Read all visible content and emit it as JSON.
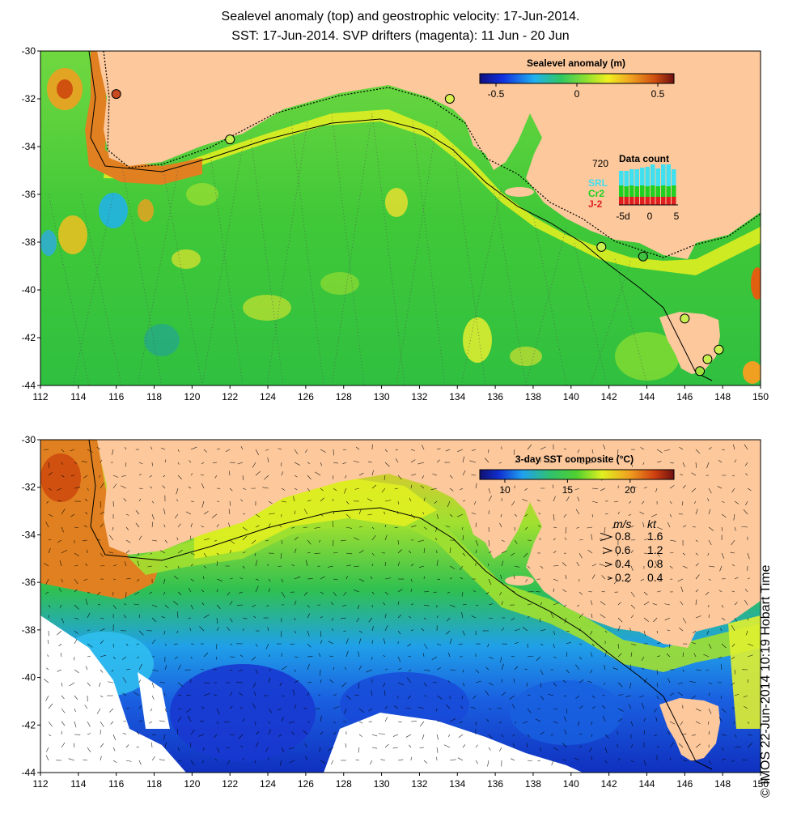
{
  "title": {
    "line1": "Sealevel anomaly (top) and geostrophic velocity: 17-Jun-2014.",
    "line2": "SST: 17-Jun-2014. SVP drifters (magenta): 11 Jun - 20 Jun"
  },
  "axes": {
    "lon_ticks": [
      "112",
      "114",
      "116",
      "118",
      "120",
      "122",
      "124",
      "126",
      "128",
      "130",
      "132",
      "134",
      "136",
      "138",
      "140",
      "142",
      "144",
      "146",
      "148",
      "150"
    ],
    "lat_ticks": [
      "-30",
      "-32",
      "-34",
      "-36",
      "-38",
      "-40",
      "-42",
      "-44"
    ],
    "lon_range": [
      112,
      150
    ],
    "lat_range": [
      -30,
      -44
    ]
  },
  "top_panel": {
    "colorbar_title": "Sealevel anomaly (m)",
    "colorbar_ticks": [
      "-0.5",
      "0",
      "0.5"
    ],
    "colorbar_range": [
      -0.6,
      0.6
    ],
    "data_count": {
      "title": "Data count",
      "max_label": "720",
      "satellites": [
        "SRL",
        "Cr2",
        "J-2"
      ],
      "satellite_colors": [
        "#40e0f0",
        "#20d020",
        "#e02020"
      ],
      "x_ticks": [
        "-5d",
        "0",
        "5"
      ]
    },
    "tide_gauges": [
      {
        "lon": 116.0,
        "lat": -31.8,
        "color": "#c84a20"
      },
      {
        "lon": 122.0,
        "lat": -33.7,
        "color": "#c8f050"
      },
      {
        "lon": 133.6,
        "lat": -32.0,
        "color": "#d8f050"
      },
      {
        "lon": 141.6,
        "lat": -38.2,
        "color": "#c8f050"
      },
      {
        "lon": 143.8,
        "lat": -38.6,
        "color": "#40c040"
      },
      {
        "lon": 146.0,
        "lat": -41.2,
        "color": "#c8f050"
      },
      {
        "lon": 147.2,
        "lat": -42.9,
        "color": "#c8f050"
      },
      {
        "lon": 147.8,
        "lat": -42.5,
        "color": "#c8f050"
      },
      {
        "lon": 146.8,
        "lat": -43.4,
        "color": "#a0e040"
      }
    ]
  },
  "bottom_panel": {
    "colorbar_title": "3-day SST composite (°C)",
    "colorbar_ticks": [
      "10",
      "15",
      "20"
    ],
    "colorbar_range": [
      8,
      23.5
    ],
    "velocity_legend": {
      "unit_ms": "m/s",
      "unit_kt": "kt",
      "rows": [
        {
          "ms": "0.8",
          "kt": "1.6"
        },
        {
          "ms": "0.6",
          "kt": "1.2"
        },
        {
          "ms": "0.4",
          "kt": "0.8"
        },
        {
          "ms": "0.2",
          "kt": "0.4"
        }
      ]
    }
  },
  "credit": "© IMOS 22-Jun-2014 10:19 Hobart Time",
  "colors": {
    "land": "#fcc89c",
    "sla_mid": "#30c030",
    "sst_warm": "#f0a030",
    "sst_cool": "#2050e0"
  }
}
